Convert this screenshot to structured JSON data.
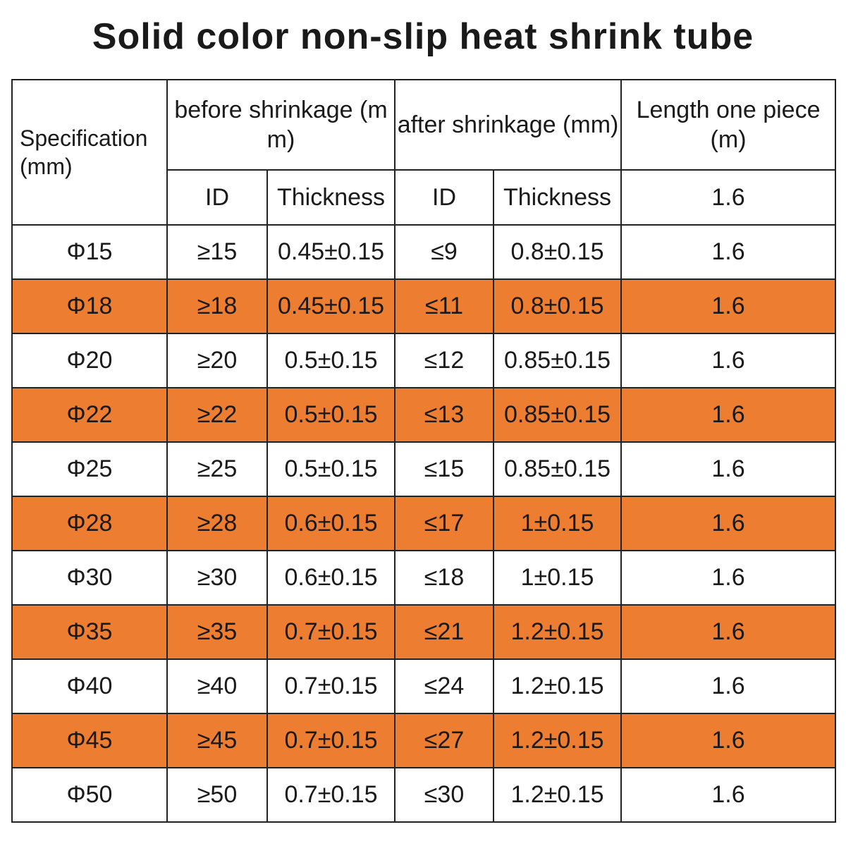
{
  "title": "Solid color non-slip heat shrink tube",
  "header": {
    "specification": "Specification (mm)",
    "before": "before shrinkage (mm)",
    "after": "after shrinkage (mm)",
    "length": "Length one piece (m)",
    "before_id": "ID",
    "before_thickness": "Thickness",
    "after_id": "ID",
    "after_thickness": "Thickness",
    "length_value": "1.6"
  },
  "colors": {
    "stripe": "#ed7d31",
    "plain": "#ffffff",
    "border": "#222222"
  },
  "rows": [
    {
      "spec": "Φ15",
      "before_id": "≥15",
      "before_thickness": "0.45±0.15",
      "after_id": "≤9",
      "after_thickness": "0.8±0.15",
      "length": "1.6"
    },
    {
      "spec": "Φ18",
      "before_id": "≥18",
      "before_thickness": "0.45±0.15",
      "after_id": "≤11",
      "after_thickness": "0.8±0.15",
      "length": "1.6"
    },
    {
      "spec": "Φ20",
      "before_id": "≥20",
      "before_thickness": "0.5±0.15",
      "after_id": "≤12",
      "after_thickness": "0.85±0.15",
      "length": "1.6"
    },
    {
      "spec": "Φ22",
      "before_id": "≥22",
      "before_thickness": "0.5±0.15",
      "after_id": "≤13",
      "after_thickness": "0.85±0.15",
      "length": "1.6"
    },
    {
      "spec": "Φ25",
      "before_id": "≥25",
      "before_thickness": "0.5±0.15",
      "after_id": "≤15",
      "after_thickness": "0.85±0.15",
      "length": "1.6"
    },
    {
      "spec": "Φ28",
      "before_id": "≥28",
      "before_thickness": "0.6±0.15",
      "after_id": "≤17",
      "after_thickness": "1±0.15",
      "length": "1.6"
    },
    {
      "spec": "Φ30",
      "before_id": "≥30",
      "before_thickness": "0.6±0.15",
      "after_id": "≤18",
      "after_thickness": "1±0.15",
      "length": "1.6"
    },
    {
      "spec": "Φ35",
      "before_id": "≥35",
      "before_thickness": "0.7±0.15",
      "after_id": "≤21",
      "after_thickness": "1.2±0.15",
      "length": "1.6"
    },
    {
      "spec": "Φ40",
      "before_id": "≥40",
      "before_thickness": "0.7±0.15",
      "after_id": "≤24",
      "after_thickness": "1.2±0.15",
      "length": "1.6"
    },
    {
      "spec": "Φ45",
      "before_id": "≥45",
      "before_thickness": "0.7±0.15",
      "after_id": "≤27",
      "after_thickness": "1.2±0.15",
      "length": "1.6"
    },
    {
      "spec": "Φ50",
      "before_id": "≥50",
      "before_thickness": "0.7±0.15",
      "after_id": "≤30",
      "after_thickness": "1.2±0.15",
      "length": "1.6"
    }
  ]
}
